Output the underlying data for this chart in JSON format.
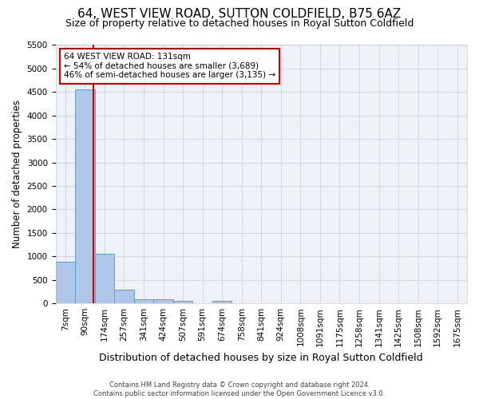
{
  "title": "64, WEST VIEW ROAD, SUTTON COLDFIELD, B75 6AZ",
  "subtitle": "Size of property relative to detached houses in Royal Sutton Coldfield",
  "xlabel": "Distribution of detached houses by size in Royal Sutton Coldfield",
  "ylabel": "Number of detached properties",
  "footer_line1": "Contains HM Land Registry data © Crown copyright and database right 2024.",
  "footer_line2": "Contains public sector information licensed under the Open Government Licence v3.0.",
  "bar_labels": [
    "7sqm",
    "90sqm",
    "174sqm",
    "257sqm",
    "341sqm",
    "424sqm",
    "507sqm",
    "591sqm",
    "674sqm",
    "758sqm",
    "841sqm",
    "924sqm",
    "1008sqm",
    "1091sqm",
    "1175sqm",
    "1258sqm",
    "1341sqm",
    "1425sqm",
    "1508sqm",
    "1592sqm",
    "1675sqm"
  ],
  "bar_values": [
    880,
    4560,
    1060,
    290,
    90,
    80,
    60,
    0,
    60,
    0,
    0,
    0,
    0,
    0,
    0,
    0,
    0,
    0,
    0,
    0,
    0
  ],
  "bar_color": "#aec6e8",
  "bar_edge_color": "#5a9fd4",
  "grid_color": "#d0d8e8",
  "background_color": "#eef2f8",
  "property_line_x": 1.45,
  "property_line_color": "#cc0000",
  "annotation_text": "64 WEST VIEW ROAD: 131sqm\n← 54% of detached houses are smaller (3,689)\n46% of semi-detached houses are larger (3,135) →",
  "annotation_box_color": "#cc0000",
  "annotation_text_color": "#000000",
  "ylim": [
    0,
    5500
  ],
  "yticks": [
    0,
    500,
    1000,
    1500,
    2000,
    2500,
    3000,
    3500,
    4000,
    4500,
    5000,
    5500
  ],
  "title_fontsize": 11,
  "subtitle_fontsize": 9,
  "xlabel_fontsize": 9,
  "ylabel_fontsize": 8.5,
  "tick_fontsize": 7.5,
  "annotation_fontsize": 7.5,
  "footer_fontsize": 6.0
}
